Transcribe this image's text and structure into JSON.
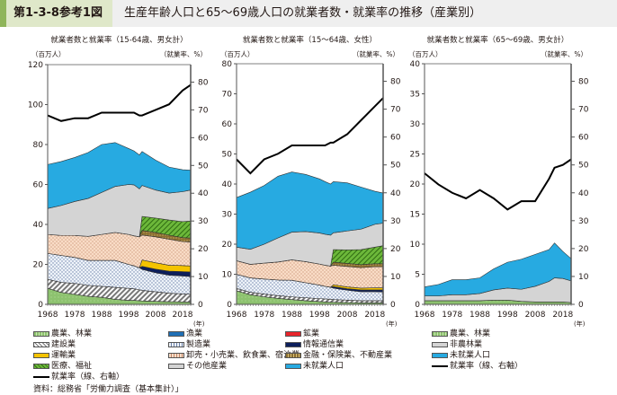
{
  "header": {
    "figure_number": "第1-3-8参考1図",
    "figure_title": "生産年齢人口と65～69歳人口の就業者数・就業率の推移（産業別）"
  },
  "colors": {
    "agri": "#8dc26f",
    "fishery": "#1f6fb5",
    "mining": "#e8242b",
    "construction": "#9a9a9a",
    "manufacturing": "#dbe6f4",
    "info": "#0d1f5c",
    "transport": "#f4c300",
    "wholesale": "#f7d2b8",
    "finance": "#8a6d2f",
    "medical": "#5aa82b",
    "other": "#d4d4d4",
    "nonagri": "#d4d4d4",
    "not_employed": "#27aae1",
    "rate_line": "#000000",
    "title_accent": "#8fb55a",
    "title_num_bg": "#dfe8c9"
  },
  "chart_data": [
    {
      "type": "area",
      "title": "就業者数と就業率（15-64歳、男女計）",
      "left_unit": "（百万人）",
      "right_unit": "（就業率、%）",
      "x_unit": "(年)",
      "x_ticks": [
        "1968",
        "1978",
        "1988",
        "1998",
        "2008",
        "2018"
      ],
      "x_range": [
        1968,
        2021
      ],
      "left_ylim": [
        0,
        120
      ],
      "left_ticks": [
        "0",
        "20",
        "40",
        "60",
        "80",
        "100",
        "120"
      ],
      "right_ylim": [
        0,
        85
      ],
      "right_ticks": [
        "0",
        "10",
        "20",
        "30",
        "40",
        "50",
        "60",
        "70",
        "80"
      ],
      "x": [
        1968,
        1973,
        1978,
        1983,
        1988,
        1993,
        1998,
        2000,
        2002,
        2003,
        2008,
        2013,
        2018,
        2021
      ],
      "series": [
        {
          "key": "agri",
          "name": "農業、林業",
          "values": [
            8,
            6,
            5,
            4,
            3.5,
            2.5,
            2,
            2,
            1.8,
            1.7,
            1.5,
            1.3,
            1.2,
            1.1
          ]
        },
        {
          "key": "construction",
          "name": "建設業",
          "values": [
            4.5,
            5,
            5.5,
            5.5,
            5.5,
            6,
            6,
            5.8,
            5.5,
            5.3,
            4.8,
            4.3,
            4,
            4
          ]
        },
        {
          "key": "manufacturing",
          "name": "製造業",
          "values": [
            13,
            13.5,
            13,
            12.5,
            13,
            13.5,
            12,
            11.5,
            11,
            10.5,
            9.5,
            9,
            9,
            8.8
          ]
        },
        {
          "key": "info",
          "name": "情報通信業",
          "values": [
            0,
            0,
            0,
            0,
            0,
            0,
            0,
            0,
            0,
            1.5,
            1.8,
            2,
            2.2,
            2.3
          ]
        },
        {
          "key": "transport",
          "name": "運輸業",
          "values": [
            0,
            0,
            0,
            0,
            0,
            0,
            0,
            0,
            0,
            3.2,
            3.2,
            3,
            3,
            3
          ]
        },
        {
          "key": "wholesale",
          "name": "卸売・小売業、飲食業、宿泊業",
          "values": [
            9.5,
            10,
            11,
            12,
            13,
            14,
            15,
            15,
            15.5,
            12.5,
            13,
            13,
            12,
            12
          ]
        },
        {
          "key": "finance",
          "name": "金融・保険業、不動産業",
          "values": [
            0,
            0,
            0,
            0,
            0,
            0,
            0,
            0,
            0,
            2.3,
            2.2,
            2,
            2,
            2
          ]
        },
        {
          "key": "medical",
          "name": "医療、福祉",
          "values": [
            0,
            0,
            0,
            0,
            0,
            0,
            0,
            0,
            0,
            7,
            7.2,
            7.6,
            8,
            8.5
          ]
        },
        {
          "key": "other",
          "name": "その他産業",
          "values": [
            13,
            15,
            17,
            19,
            21,
            23,
            25,
            25.5,
            24,
            15.5,
            14,
            13.5,
            15,
            15.5
          ]
        },
        {
          "key": "not_employed",
          "name": "未就業人口",
          "values": [
            22,
            22,
            22,
            23,
            24,
            22,
            18,
            17,
            17,
            17,
            15,
            13,
            11,
            10
          ]
        }
      ],
      "rate": {
        "name": "就業率（線、右軸）",
        "values": [
          68,
          66,
          67,
          67,
          69,
          69,
          69,
          69,
          68,
          68,
          70,
          72,
          77,
          79
        ]
      }
    },
    {
      "type": "area",
      "title": "就業者数と就業率（15～64歳、女性）",
      "left_unit": "（百万人）",
      "right_unit": "（就業率、%）",
      "x_unit": "(年)",
      "x_ticks": [
        "1968",
        "1978",
        "1988",
        "1998",
        "2008",
        "2018"
      ],
      "x_range": [
        1968,
        2021
      ],
      "left_ylim": [
        0,
        80
      ],
      "left_ticks": [
        "0",
        "10",
        "20",
        "30",
        "40",
        "50",
        "60",
        "70",
        "80"
      ],
      "right_ylim": [
        0,
        85
      ],
      "right_ticks": [
        "0",
        "10",
        "20",
        "30",
        "40",
        "50",
        "60",
        "70",
        "80"
      ],
      "x": [
        1968,
        1973,
        1978,
        1983,
        1988,
        1993,
        1998,
        2000,
        2002,
        2003,
        2008,
        2013,
        2018,
        2021
      ],
      "series": [
        {
          "key": "agri",
          "name": "農業、林業",
          "values": [
            4.5,
            3.2,
            2.5,
            2,
            1.6,
            1.2,
            0.9,
            0.8,
            0.7,
            0.7,
            0.6,
            0.5,
            0.5,
            0.5
          ]
        },
        {
          "key": "construction",
          "name": "建設業",
          "values": [
            0.8,
            0.8,
            0.9,
            0.9,
            0.9,
            1,
            1,
            1,
            1,
            0.9,
            0.8,
            0.7,
            0.7,
            0.7
          ]
        },
        {
          "key": "manufacturing",
          "name": "製造業",
          "values": [
            4.7,
            4.8,
            5,
            5.2,
            5.5,
            5,
            4.5,
            4.2,
            4,
            3.8,
            3.3,
            3,
            3,
            2.9
          ]
        },
        {
          "key": "info",
          "name": "情報通信業",
          "values": [
            0,
            0,
            0,
            0,
            0,
            0,
            0,
            0,
            0,
            0.5,
            0.5,
            0.6,
            0.6,
            0.7
          ]
        },
        {
          "key": "transport",
          "name": "運輸業",
          "values": [
            0,
            0,
            0,
            0,
            0,
            0,
            0,
            0,
            0,
            0.6,
            0.6,
            0.6,
            0.7,
            0.7
          ]
        },
        {
          "key": "wholesale",
          "name": "卸売・小売業、飲食業、宿泊業",
          "values": [
            4.5,
            4.5,
            5.3,
            6,
            6.8,
            7,
            7,
            7,
            7,
            6.5,
            6.8,
            6.8,
            7,
            7
          ]
        },
        {
          "key": "finance",
          "name": "金融・保険業、不動産業",
          "values": [
            0,
            0,
            0,
            0,
            0,
            0,
            0,
            0,
            0,
            1,
            1,
            1,
            1,
            1
          ]
        },
        {
          "key": "medical",
          "name": "医療、福祉",
          "values": [
            0,
            0,
            0,
            0,
            0,
            0,
            0,
            0,
            0,
            4.2,
            4.5,
            5,
            5.5,
            6
          ]
        },
        {
          "key": "other",
          "name": "その他産業",
          "values": [
            4.5,
            5,
            6.3,
            8,
            9.2,
            10,
            10.3,
            10.3,
            10.3,
            5.6,
            6.3,
            6.8,
            7.6,
            7.5
          ]
        },
        {
          "key": "not_employed",
          "name": "未就業人口",
          "values": [
            16.5,
            19,
            19.5,
            20.5,
            20,
            19,
            18,
            17.5,
            17,
            17,
            16,
            14,
            11,
            10
          ]
        }
      ],
      "rate": {
        "name": "就業率（線、右軸）",
        "values": [
          52,
          47,
          52,
          54,
          57,
          57,
          57,
          57,
          58,
          58,
          61,
          66,
          71,
          74
        ]
      }
    },
    {
      "type": "area",
      "title": "就業者数と就業率（65～69歳、男女計）",
      "left_unit": "（百万人）",
      "right_unit": "（就業率、%）",
      "x_unit": "(年)",
      "x_ticks": [
        "1968",
        "1978",
        "1988",
        "1998",
        "2008",
        "2018"
      ],
      "x_range": [
        1968,
        2021
      ],
      "left_ylim": [
        0,
        40
      ],
      "left_ticks": [
        "0",
        "5",
        "10",
        "15",
        "20",
        "25",
        "30",
        "35",
        "40"
      ],
      "right_ylim": [
        0,
        85
      ],
      "right_ticks": [
        "0",
        "10",
        "20",
        "30",
        "40",
        "50",
        "60",
        "70",
        "80"
      ],
      "x": [
        1968,
        1973,
        1978,
        1983,
        1988,
        1993,
        1998,
        2003,
        2008,
        2013,
        2015,
        2018,
        2021
      ],
      "series": [
        {
          "key": "agri",
          "name": "農業、林業",
          "values": [
            0.6,
            0.6,
            0.6,
            0.6,
            0.6,
            0.7,
            0.7,
            0.5,
            0.4,
            0.4,
            0.4,
            0.4,
            0.3
          ]
        },
        {
          "key": "nonagri",
          "name": "非農林業",
          "values": [
            0.8,
            0.8,
            1,
            1,
            1.2,
            1.7,
            2,
            2,
            2.6,
            3.4,
            4,
            3.9,
            3.6
          ]
        },
        {
          "key": "not_employed",
          "name": "未就業人口",
          "values": [
            1.5,
            1.9,
            2.5,
            2.5,
            2.6,
            3.5,
            4.3,
            5,
            5.3,
            5.3,
            5.8,
            4.5,
            3.7
          ]
        }
      ],
      "rate": {
        "name": "就業率（線、右軸）",
        "values": [
          47,
          43,
          40,
          38,
          41,
          38,
          34,
          37,
          37,
          45,
          49,
          50,
          52
        ]
      }
    }
  ],
  "legend_main": [
    [
      "農業、林業",
      "漁業",
      "鉱業"
    ],
    [
      "建設業",
      "製造業",
      "情報通信業"
    ],
    [
      "運輸業",
      "卸売・小売業、飲食業、宿泊業",
      "金融・保険業、不動産業"
    ],
    [
      "医療、福祉",
      "その他産業",
      "未就業人口"
    ],
    [
      "就業率（線、右軸）"
    ]
  ],
  "legend_right": [
    "農業、林業",
    "非農林業",
    "未就業人口",
    "就業率（線、右軸）"
  ],
  "source": "資料：総務省「労働力調査（基本集計）」"
}
